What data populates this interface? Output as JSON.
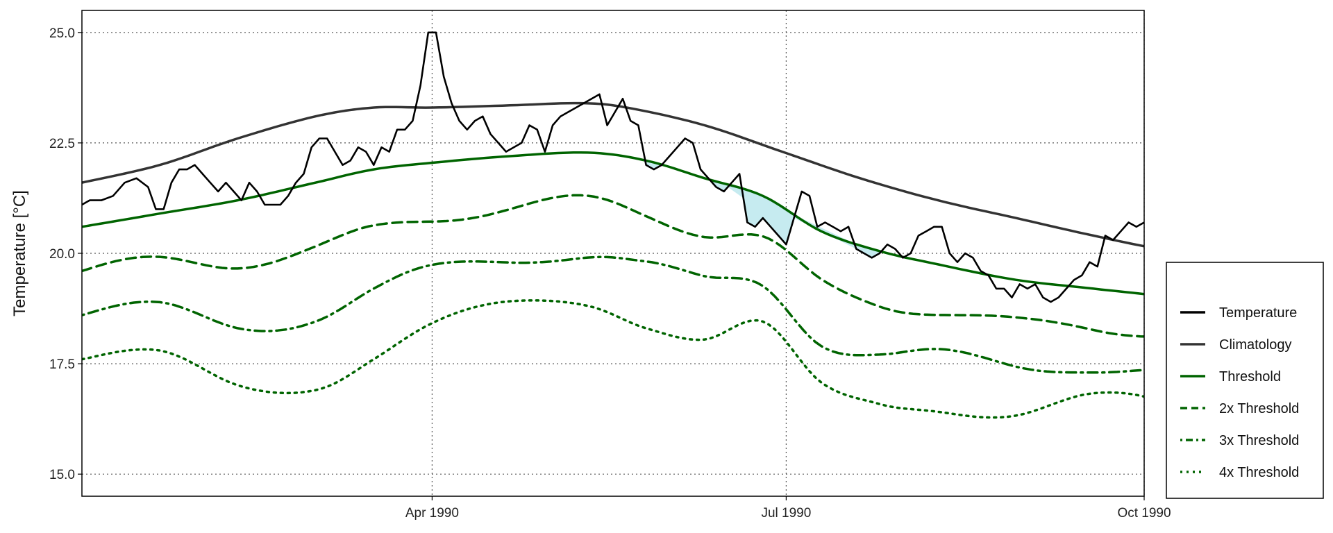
{
  "chart_data": {
    "type": "line",
    "title": "",
    "xlabel": "",
    "ylabel": "Temperature [°C]",
    "xlim": [
      "1990-01-01",
      "1990-10-01"
    ],
    "ylim": [
      14.5,
      25.5
    ],
    "x_ticks": [
      {
        "date": "1990-04-01",
        "label": "Apr 1990"
      },
      {
        "date": "1990-07-01",
        "label": "Jul 1990"
      },
      {
        "date": "1990-10-01",
        "label": "Oct 1990"
      }
    ],
    "y_ticks": [
      {
        "value": 15.0,
        "label": "15.0"
      },
      {
        "value": 17.5,
        "label": "17.5"
      },
      {
        "value": 20.0,
        "label": "20.0"
      },
      {
        "value": 22.5,
        "label": "22.5"
      },
      {
        "value": 25.0,
        "label": "25.0"
      }
    ],
    "grid": "dotted",
    "legend": {
      "position": "right",
      "entries": [
        {
          "label": "Temperature",
          "color": "#000000",
          "dash": "solid"
        },
        {
          "label": "Climatology",
          "color": "#333333",
          "dash": "solid"
        },
        {
          "label": "Threshold",
          "color": "#006400",
          "dash": "solid"
        },
        {
          "label": "2x Threshold",
          "color": "#006400",
          "dash": "dashed"
        },
        {
          "label": "3x Threshold",
          "color": "#006400",
          "dash": "dotdash"
        },
        {
          "label": "4x Threshold",
          "color": "#006400",
          "dash": "dotted"
        }
      ]
    },
    "fill_colors": {
      "moderate": "#c6ebf0",
      "strong": "#85b3c8"
    },
    "series": [
      {
        "name": "Temperature",
        "points": [
          [
            "1990-01-01",
            21.1
          ],
          [
            "1990-01-03",
            21.2
          ],
          [
            "1990-01-06",
            21.2
          ],
          [
            "1990-01-09",
            21.3
          ],
          [
            "1990-01-12",
            21.6
          ],
          [
            "1990-01-15",
            21.7
          ],
          [
            "1990-01-18",
            21.5
          ],
          [
            "1990-01-20",
            21.0
          ],
          [
            "1990-01-22",
            21.0
          ],
          [
            "1990-01-24",
            21.6
          ],
          [
            "1990-01-26",
            21.9
          ],
          [
            "1990-01-28",
            21.9
          ],
          [
            "1990-01-30",
            22.0
          ],
          [
            "1990-02-01",
            21.8
          ],
          [
            "1990-02-03",
            21.6
          ],
          [
            "1990-02-05",
            21.4
          ],
          [
            "1990-02-07",
            21.6
          ],
          [
            "1990-02-09",
            21.4
          ],
          [
            "1990-02-11",
            21.2
          ],
          [
            "1990-02-13",
            21.6
          ],
          [
            "1990-02-15",
            21.4
          ],
          [
            "1990-02-17",
            21.1
          ],
          [
            "1990-02-19",
            21.1
          ],
          [
            "1990-02-21",
            21.1
          ],
          [
            "1990-02-23",
            21.3
          ],
          [
            "1990-02-25",
            21.6
          ],
          [
            "1990-02-27",
            21.8
          ],
          [
            "1990-03-01",
            22.4
          ],
          [
            "1990-03-03",
            22.6
          ],
          [
            "1990-03-05",
            22.6
          ],
          [
            "1990-03-07",
            22.3
          ],
          [
            "1990-03-09",
            22.0
          ],
          [
            "1990-03-11",
            22.1
          ],
          [
            "1990-03-13",
            22.4
          ],
          [
            "1990-03-15",
            22.3
          ],
          [
            "1990-03-17",
            22.0
          ],
          [
            "1990-03-19",
            22.4
          ],
          [
            "1990-03-21",
            22.3
          ],
          [
            "1990-03-23",
            22.8
          ],
          [
            "1990-03-25",
            22.8
          ],
          [
            "1990-03-27",
            23.0
          ],
          [
            "1990-03-29",
            23.8
          ],
          [
            "1990-03-31",
            25.0
          ],
          [
            "1990-04-02",
            25.0
          ],
          [
            "1990-04-04",
            24.0
          ],
          [
            "1990-04-06",
            23.4
          ],
          [
            "1990-04-08",
            23.0
          ],
          [
            "1990-04-10",
            22.8
          ],
          [
            "1990-04-12",
            23.0
          ],
          [
            "1990-04-14",
            23.1
          ],
          [
            "1990-04-16",
            22.7
          ],
          [
            "1990-04-18",
            22.5
          ],
          [
            "1990-04-20",
            22.3
          ],
          [
            "1990-04-22",
            22.4
          ],
          [
            "1990-04-24",
            22.5
          ],
          [
            "1990-04-26",
            22.9
          ],
          [
            "1990-04-28",
            22.8
          ],
          [
            "1990-04-30",
            22.3
          ],
          [
            "1990-05-02",
            22.9
          ],
          [
            "1990-05-04",
            23.1
          ],
          [
            "1990-05-06",
            23.2
          ],
          [
            "1990-05-08",
            23.3
          ],
          [
            "1990-05-10",
            23.4
          ],
          [
            "1990-05-12",
            23.5
          ],
          [
            "1990-05-14",
            23.6
          ],
          [
            "1990-05-16",
            22.9
          ],
          [
            "1990-05-18",
            23.2
          ],
          [
            "1990-05-20",
            23.5
          ],
          [
            "1990-05-22",
            23.0
          ],
          [
            "1990-05-24",
            22.9
          ],
          [
            "1990-05-26",
            22.0
          ],
          [
            "1990-05-28",
            21.9
          ],
          [
            "1990-05-30",
            22.0
          ],
          [
            "1990-06-01",
            22.2
          ],
          [
            "1990-06-03",
            22.4
          ],
          [
            "1990-06-05",
            22.6
          ],
          [
            "1990-06-07",
            22.5
          ],
          [
            "1990-06-09",
            21.9
          ],
          [
            "1990-06-11",
            21.7
          ],
          [
            "1990-06-13",
            21.5
          ],
          [
            "1990-06-15",
            21.4
          ],
          [
            "1990-06-17",
            21.6
          ],
          [
            "1990-06-19",
            21.8
          ],
          [
            "1990-06-21",
            20.7
          ],
          [
            "1990-06-23",
            20.6
          ],
          [
            "1990-06-25",
            20.8
          ],
          [
            "1990-06-27",
            20.6
          ],
          [
            "1990-06-29",
            20.4
          ],
          [
            "1990-07-01",
            20.2
          ],
          [
            "1990-07-03",
            20.8
          ],
          [
            "1990-07-05",
            21.4
          ],
          [
            "1990-07-07",
            21.3
          ],
          [
            "1990-07-09",
            20.6
          ],
          [
            "1990-07-11",
            20.7
          ],
          [
            "1990-07-13",
            20.6
          ],
          [
            "1990-07-15",
            20.5
          ],
          [
            "1990-07-17",
            20.6
          ],
          [
            "1990-07-19",
            20.1
          ],
          [
            "1990-07-21",
            20.0
          ],
          [
            "1990-07-23",
            19.9
          ],
          [
            "1990-07-25",
            20.0
          ],
          [
            "1990-07-27",
            20.2
          ],
          [
            "1990-07-29",
            20.1
          ],
          [
            "1990-07-31",
            19.9
          ],
          [
            "1990-08-02",
            20.0
          ],
          [
            "1990-08-04",
            20.4
          ],
          [
            "1990-08-06",
            20.5
          ],
          [
            "1990-08-08",
            20.6
          ],
          [
            "1990-08-10",
            20.6
          ],
          [
            "1990-08-12",
            20.0
          ],
          [
            "1990-08-14",
            19.8
          ],
          [
            "1990-08-16",
            20.0
          ],
          [
            "1990-08-18",
            19.9
          ],
          [
            "1990-08-20",
            19.6
          ],
          [
            "1990-08-22",
            19.5
          ],
          [
            "1990-08-24",
            19.2
          ],
          [
            "1990-08-26",
            19.2
          ],
          [
            "1990-08-28",
            19.0
          ],
          [
            "1990-08-30",
            19.3
          ],
          [
            "1990-09-01",
            19.2
          ],
          [
            "1990-09-03",
            19.3
          ],
          [
            "1990-09-05",
            19.0
          ],
          [
            "1990-09-07",
            18.9
          ],
          [
            "1990-09-09",
            19.0
          ],
          [
            "1990-09-11",
            19.2
          ],
          [
            "1990-09-13",
            19.4
          ],
          [
            "1990-09-15",
            19.5
          ],
          [
            "1990-09-17",
            19.8
          ],
          [
            "1990-09-19",
            19.7
          ],
          [
            "1990-09-21",
            20.4
          ],
          [
            "1990-09-23",
            20.3
          ],
          [
            "1990-09-25",
            20.5
          ],
          [
            "1990-09-27",
            20.7
          ],
          [
            "1990-09-29",
            20.6
          ],
          [
            "1990-10-01",
            20.7
          ]
        ]
      }
    ]
  }
}
